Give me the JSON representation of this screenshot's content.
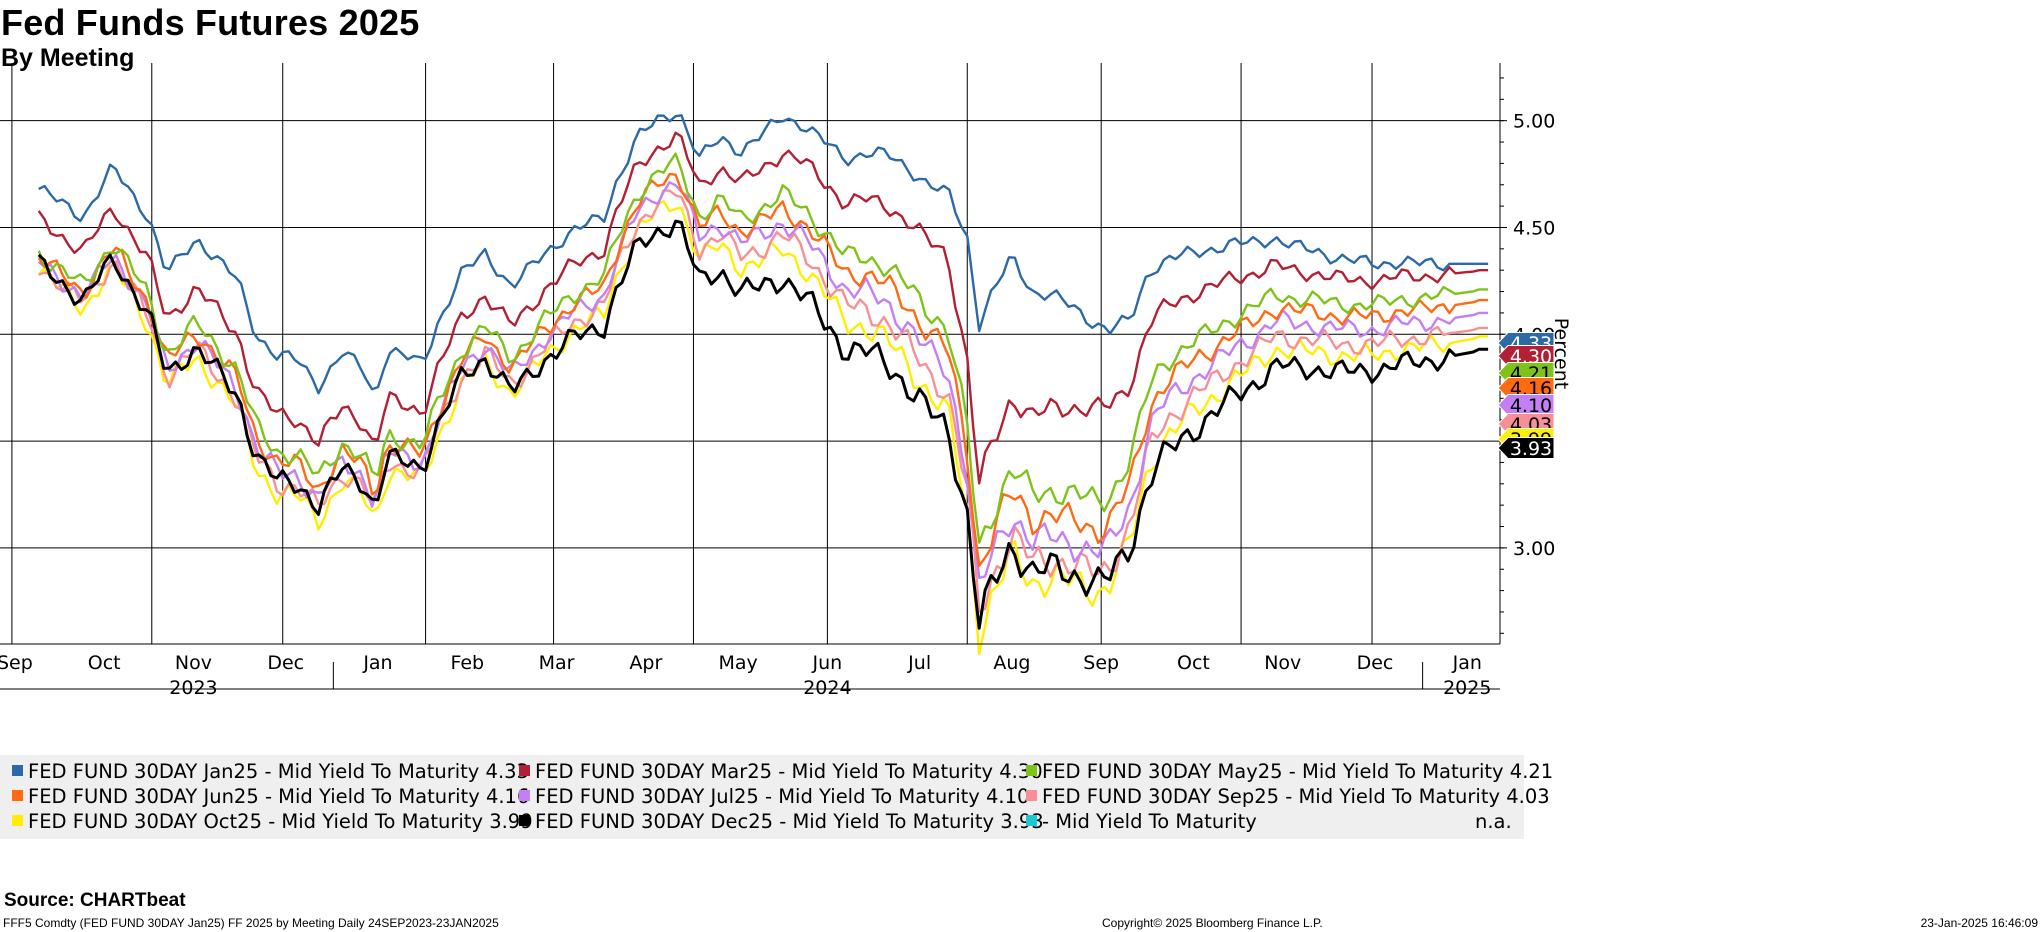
{
  "title": "Fed Funds Futures 2025",
  "subtitle": "By Meeting",
  "source": "Source: CHARTbeat",
  "footer_left": "FFF5 Comdty (FED FUND 30DAY    Jan25) FF 2025 by Meeting  Daily 24SEP2023-23JAN2025",
  "footer_center": "Copyright© 2025 Bloomberg Finance L.P.",
  "footer_right": "23-Jan-2025 16:46:09",
  "chart_data": {
    "type": "line",
    "ylabel": "Percent",
    "ylim": [
      2.55,
      5.27
    ],
    "y_ticks": [
      3.0,
      3.5,
      4.0,
      4.5,
      5.0
    ],
    "y_tick_labels": [
      "3.00",
      "3.50",
      "4.00",
      "4.50",
      "5.00"
    ],
    "x_start": "2023-09-11",
    "x_end": "2025-01-27",
    "month_labels": [
      {
        "date": "2023-09-16",
        "label": "Sep"
      },
      {
        "date": "2023-10-16",
        "label": "Oct"
      },
      {
        "date": "2023-11-15",
        "label": "Nov"
      },
      {
        "date": "2023-12-16",
        "label": "Dec"
      },
      {
        "date": "2024-01-16",
        "label": "Jan"
      },
      {
        "date": "2024-02-15",
        "label": "Feb"
      },
      {
        "date": "2024-03-16",
        "label": "Mar"
      },
      {
        "date": "2024-04-15",
        "label": "Apr"
      },
      {
        "date": "2024-05-16",
        "label": "May"
      },
      {
        "date": "2024-06-15",
        "label": "Jun"
      },
      {
        "date": "2024-07-16",
        "label": "Jul"
      },
      {
        "date": "2024-08-16",
        "label": "Aug"
      },
      {
        "date": "2024-09-15",
        "label": "Sep"
      },
      {
        "date": "2024-10-16",
        "label": "Oct"
      },
      {
        "date": "2024-11-15",
        "label": "Nov"
      },
      {
        "date": "2024-12-16",
        "label": "Dec"
      },
      {
        "date": "2025-01-16",
        "label": "Jan"
      }
    ],
    "vertical_gridlines": [
      "2023-09-15",
      "2023-11-01",
      "2023-12-15",
      "2024-02-01",
      "2024-03-15",
      "2024-05-01",
      "2024-06-15",
      "2024-08-01",
      "2024-09-15",
      "2024-11-01",
      "2024-12-15"
    ],
    "year_labels": [
      {
        "date": "2023-11-15",
        "label": "2023"
      },
      {
        "date": "2024-06-15",
        "label": "2024"
      },
      {
        "date": "2025-01-16",
        "label": "2025"
      }
    ],
    "year_dividers": [
      "2024-01-01",
      "2025-01-01"
    ],
    "series_template": {
      "points": [
        [
          "2023-09-24",
          4.68
        ],
        [
          "2023-10-09",
          4.55
        ],
        [
          "2023-10-19",
          4.78
        ],
        [
          "2023-10-31",
          4.55
        ],
        [
          "2023-11-06",
          4.28
        ],
        [
          "2023-11-16",
          4.45
        ],
        [
          "2023-11-30",
          4.25
        ],
        [
          "2023-12-06",
          4.0
        ],
        [
          "2023-12-13",
          3.9
        ],
        [
          "2023-12-20",
          3.88
        ],
        [
          "2023-12-27",
          3.76
        ],
        [
          "2024-01-04",
          3.91
        ],
        [
          "2024-01-11",
          3.84
        ],
        [
          "2024-01-15",
          3.7
        ],
        [
          "2024-01-19",
          3.93
        ],
        [
          "2024-01-31",
          3.86
        ],
        [
          "2024-02-05",
          4.05
        ],
        [
          "2024-02-13",
          4.28
        ],
        [
          "2024-02-21",
          4.38
        ],
        [
          "2024-03-01",
          4.22
        ],
        [
          "2024-03-12",
          4.38
        ],
        [
          "2024-03-21",
          4.48
        ],
        [
          "2024-04-01",
          4.55
        ],
        [
          "2024-04-05",
          4.71
        ],
        [
          "2024-04-12",
          4.92
        ],
        [
          "2024-04-19",
          5.0
        ],
        [
          "2024-04-26",
          5.05
        ],
        [
          "2024-05-03",
          4.82
        ],
        [
          "2024-05-10",
          4.92
        ],
        [
          "2024-05-17",
          4.86
        ],
        [
          "2024-05-24",
          4.93
        ],
        [
          "2024-05-31",
          5.02
        ],
        [
          "2024-06-07",
          4.98
        ],
        [
          "2024-06-14",
          4.9
        ],
        [
          "2024-06-21",
          4.82
        ],
        [
          "2024-06-28",
          4.85
        ],
        [
          "2024-07-05",
          4.84
        ],
        [
          "2024-07-12",
          4.78
        ],
        [
          "2024-07-19",
          4.7
        ],
        [
          "2024-07-26",
          4.65
        ],
        [
          "2024-08-01",
          4.45
        ],
        [
          "2024-08-05",
          4.05
        ],
        [
          "2024-08-09",
          4.18
        ],
        [
          "2024-08-16",
          4.36
        ],
        [
          "2024-08-23",
          4.2
        ],
        [
          "2024-08-30",
          4.18
        ],
        [
          "2024-09-06",
          4.12
        ],
        [
          "2024-09-13",
          4.05
        ],
        [
          "2024-09-18",
          4.02
        ],
        [
          "2024-09-25",
          4.07
        ],
        [
          "2024-10-01",
          4.3
        ],
        [
          "2024-10-08",
          4.35
        ],
        [
          "2024-10-15",
          4.38
        ],
        [
          "2024-10-22",
          4.4
        ],
        [
          "2024-10-29",
          4.42
        ],
        [
          "2024-11-05",
          4.43
        ],
        [
          "2024-11-12",
          4.45
        ],
        [
          "2024-11-19",
          4.41
        ],
        [
          "2024-11-26",
          4.39
        ],
        [
          "2024-12-03",
          4.36
        ],
        [
          "2024-12-10",
          4.34
        ],
        [
          "2024-12-17",
          4.33
        ],
        [
          "2024-12-24",
          4.34
        ],
        [
          "2024-12-31",
          4.33
        ],
        [
          "2025-01-07",
          4.33
        ],
        [
          "2025-01-14",
          4.33
        ],
        [
          "2025-01-23",
          4.33
        ]
      ],
      "note": "Jan25 path read from chart; other meetings follow Jan25 with the offsets below"
    },
    "series": [
      {
        "name": "FED FUND 30DAY Jan25",
        "last": 4.33,
        "color": "#2b6aa6",
        "offsets": [
          [
            "2023-09-24",
            0
          ],
          [
            "2025-01-23",
            0
          ]
        ]
      },
      {
        "name": "FED FUND 30DAY Mar25",
        "last": 4.3,
        "color": "#b31f33",
        "offsets": [
          [
            "2023-09-24",
            -0.14
          ],
          [
            "2023-12-15",
            -0.28
          ],
          [
            "2024-02-01",
            -0.22
          ],
          [
            "2024-04-25",
            -0.12
          ],
          [
            "2024-06-10",
            -0.18
          ],
          [
            "2024-07-25",
            -0.28
          ],
          [
            "2024-08-05",
            -0.75
          ],
          [
            "2024-09-15",
            -0.38
          ],
          [
            "2024-10-05",
            -0.22
          ],
          [
            "2024-11-15",
            -0.12
          ],
          [
            "2025-01-23",
            -0.03
          ]
        ]
      },
      {
        "name": "FED FUND 30DAY May25",
        "last": 4.21,
        "color": "#7ec31a",
        "offsets": [
          [
            "2023-09-24",
            -0.3
          ],
          [
            "2023-12-15",
            -0.45
          ],
          [
            "2024-02-01",
            -0.38
          ],
          [
            "2024-04-25",
            -0.24
          ],
          [
            "2024-06-10",
            -0.4
          ],
          [
            "2024-07-25",
            -0.62
          ],
          [
            "2024-08-05",
            -1.05
          ],
          [
            "2024-09-15",
            -0.82
          ],
          [
            "2024-10-05",
            -0.48
          ],
          [
            "2024-11-15",
            -0.25
          ],
          [
            "2025-01-23",
            -0.12
          ]
        ]
      },
      {
        "name": "FED FUND 30DAY Jun25",
        "last": 4.16,
        "color": "#ff6a13",
        "offsets": [
          [
            "2023-09-24",
            -0.32
          ],
          [
            "2023-12-15",
            -0.5
          ],
          [
            "2024-02-01",
            -0.42
          ],
          [
            "2024-04-25",
            -0.29
          ],
          [
            "2024-06-10",
            -0.47
          ],
          [
            "2024-07-25",
            -0.72
          ],
          [
            "2024-08-05",
            -1.15
          ],
          [
            "2024-09-15",
            -0.95
          ],
          [
            "2024-10-05",
            -0.58
          ],
          [
            "2024-11-15",
            -0.31
          ],
          [
            "2025-01-23",
            -0.17
          ]
        ]
      },
      {
        "name": "FED FUND 30DAY Jul25",
        "last": 4.1,
        "color": "#c37ff5",
        "offsets": [
          [
            "2023-09-24",
            -0.34
          ],
          [
            "2023-12-15",
            -0.55
          ],
          [
            "2024-02-01",
            -0.46
          ],
          [
            "2024-04-25",
            -0.33
          ],
          [
            "2024-06-10",
            -0.54
          ],
          [
            "2024-07-25",
            -0.82
          ],
          [
            "2024-08-05",
            -1.25
          ],
          [
            "2024-09-15",
            -1.06
          ],
          [
            "2024-10-05",
            -0.67
          ],
          [
            "2024-11-15",
            -0.37
          ],
          [
            "2025-01-23",
            -0.23
          ]
        ]
      },
      {
        "name": "FED FUND 30DAY Sep25",
        "last": 4.03,
        "color": "#f98f96",
        "offsets": [
          [
            "2023-09-24",
            -0.36
          ],
          [
            "2023-12-15",
            -0.6
          ],
          [
            "2024-02-01",
            -0.5
          ],
          [
            "2024-04-25",
            -0.38
          ],
          [
            "2024-06-10",
            -0.61
          ],
          [
            "2024-07-25",
            -0.92
          ],
          [
            "2024-08-05",
            -1.35
          ],
          [
            "2024-09-15",
            -1.16
          ],
          [
            "2024-10-05",
            -0.76
          ],
          [
            "2024-11-15",
            -0.44
          ],
          [
            "2025-01-23",
            -0.3
          ]
        ]
      },
      {
        "name": "FED FUND 30DAY Oct25",
        "last": 3.99,
        "color": "#ffee00",
        "offsets": [
          [
            "2023-09-24",
            -0.38
          ],
          [
            "2023-12-15",
            -0.65
          ],
          [
            "2024-02-01",
            -0.54
          ],
          [
            "2024-04-25",
            -0.42
          ],
          [
            "2024-06-10",
            -0.68
          ],
          [
            "2024-07-25",
            -1.02
          ],
          [
            "2024-08-05",
            -1.45
          ],
          [
            "2024-09-15",
            -1.24
          ],
          [
            "2024-10-05",
            -0.84
          ],
          [
            "2024-11-15",
            -0.5
          ],
          [
            "2025-01-23",
            -0.34
          ]
        ]
      },
      {
        "name": "FED FUND 30DAY Dec25",
        "last": 3.93,
        "color": "#000000",
        "offsets": [
          [
            "2023-09-24",
            -0.35
          ],
          [
            "2023-12-15",
            -0.59
          ],
          [
            "2024-02-01",
            -0.48
          ],
          [
            "2024-04-25",
            -0.52
          ],
          [
            "2024-06-10",
            -0.82
          ],
          [
            "2024-07-25",
            -1.1
          ],
          [
            "2024-08-05",
            -1.4
          ],
          [
            "2024-09-15",
            -1.2
          ],
          [
            "2024-10-05",
            -0.92
          ],
          [
            "2024-11-15",
            -0.58
          ],
          [
            "2025-01-23",
            -0.4
          ]
        ]
      }
    ],
    "legend": [
      {
        "label": "FED FUND 30DAY Jan25 - Mid Yield To Maturity 4.33",
        "color": "#2b6aa6"
      },
      {
        "label": "FED FUND 30DAY Mar25 - Mid Yield To Maturity 4.30",
        "color": "#b31f33"
      },
      {
        "label": "FED FUND 30DAY May25 - Mid Yield To Maturity 4.21",
        "color": "#7ec31a"
      },
      {
        "label": "FED FUND 30DAY Jun25 - Mid Yield To Maturity 4.16",
        "color": "#ff6a13"
      },
      {
        "label": "FED FUND 30DAY Jul25 - Mid Yield To Maturity  4.10",
        "color": "#c37ff5"
      },
      {
        "label": "FED FUND 30DAY Sep25 - Mid Yield To Maturity 4.03",
        "color": "#f98f96"
      },
      {
        "label": "FED FUND 30DAY Oct25 - Mid Yield To Maturity 3.99",
        "color": "#ffee00"
      },
      {
        "label": "FED FUND 30DAY Dec25 - Mid Yield To Maturity 3.93",
        "color": "#000000"
      },
      {
        "label": "- Mid Yield To Maturity",
        "color": "#1fc7d4",
        "extra": "n.a."
      }
    ],
    "end_tags": [
      {
        "text": "4.33",
        "value": 4.33,
        "bg": "#2b6aa6",
        "fg": "#ffffff"
      },
      {
        "text": "4.30",
        "value": 4.3,
        "bg": "#b31f33",
        "fg": "#ffffff"
      },
      {
        "text": "4.21",
        "value": 4.21,
        "bg": "#7ec31a",
        "fg": "#000000"
      },
      {
        "text": "4.16",
        "value": 4.16,
        "bg": "#ff6a13",
        "fg": "#000000"
      },
      {
        "text": "4.10",
        "value": 4.1,
        "bg": "#c37ff5",
        "fg": "#000000"
      },
      {
        "text": "4.03",
        "value": 4.03,
        "bg": "#f98f96",
        "fg": "#000000"
      },
      {
        "text": "3.99",
        "value": 3.99,
        "bg": "#ffee00",
        "fg": "#000000"
      },
      {
        "text": "3.93",
        "value": 3.93,
        "bg": "#000000",
        "fg": "#ffffff"
      }
    ]
  }
}
